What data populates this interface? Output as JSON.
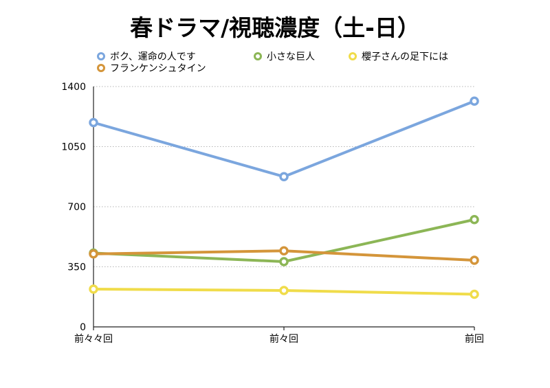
{
  "chart_data": {
    "type": "line",
    "title": "春ドラマ/視聴濃度（土-日）",
    "categories": [
      "前々々回",
      "前々回",
      "前回"
    ],
    "yticks": [
      0,
      350,
      700,
      1050,
      1400
    ],
    "ylim": [
      0,
      1400
    ],
    "grid": true,
    "legend_position": "top",
    "series": [
      {
        "name": "ボク、運命の人です",
        "color": "#7ba6de",
        "values": [
          1190,
          875,
          1315
        ]
      },
      {
        "name": "小さな巨人",
        "color": "#8cb656",
        "values": [
          430,
          380,
          625
        ]
      },
      {
        "name": "櫻子さんの足下には",
        "color": "#f0dc4a",
        "values": [
          220,
          212,
          190
        ]
      },
      {
        "name": "フランケンシュタイン",
        "color": "#d4953a",
        "values": [
          425,
          443,
          388
        ]
      }
    ]
  }
}
